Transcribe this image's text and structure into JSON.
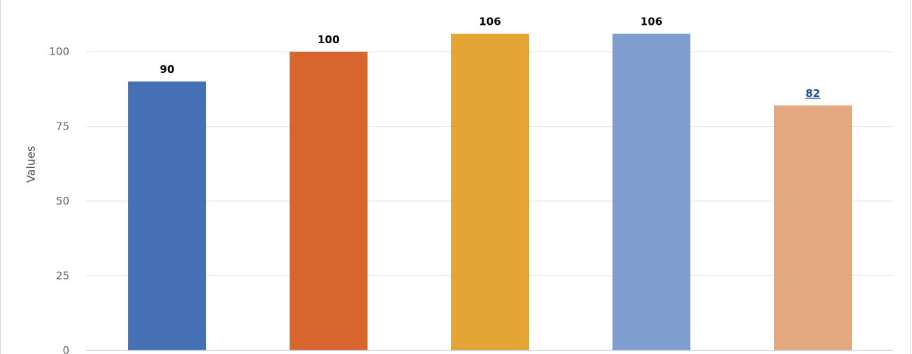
{
  "chart_data": {
    "type": "bar",
    "ylabel": "Values",
    "ylim": [
      0,
      112
    ],
    "yticks": [
      0,
      25,
      50,
      75,
      100
    ],
    "grid": true,
    "legend": "none",
    "series": [
      {
        "values": [
          90,
          100,
          106,
          106,
          82
        ],
        "colors": [
          "#4670b6",
          "#d8652d",
          "#e5a535",
          "#809dcf",
          "#e4a880"
        ],
        "label_styles": [
          "normal",
          "normal",
          "normal",
          "normal",
          "link"
        ]
      }
    ]
  }
}
